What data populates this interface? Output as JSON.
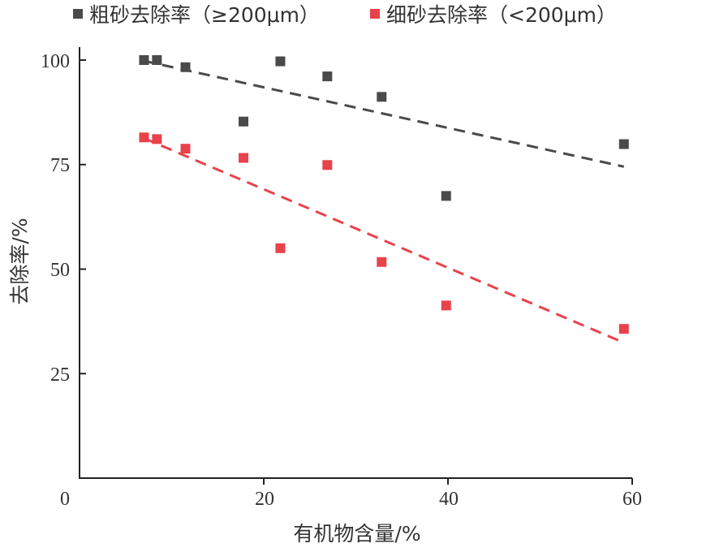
{
  "chart_data": {
    "type": "scatter",
    "title": "",
    "xlabel": "有机物含量/%",
    "ylabel": "去除率/%",
    "xlim": [
      0,
      60
    ],
    "ylim": [
      0,
      100
    ],
    "xticks": [
      0,
      20,
      40,
      60
    ],
    "yticks": [
      25,
      50,
      75,
      100
    ],
    "xtick_labels": [
      "0",
      "20",
      "40",
      "60"
    ],
    "ytick_labels": [
      "25",
      "50",
      "75",
      "100"
    ],
    "grid": false,
    "legend_position": "top",
    "series": [
      {
        "name": "粗砂去除率（≥200μm）",
        "color": "#4a4a4a",
        "x": [
          7.0,
          8.4,
          11.5,
          17.8,
          21.8,
          26.9,
          32.8,
          39.8,
          59.1
        ],
        "y": [
          100,
          100,
          98.3,
          85.3,
          99.7,
          96.1,
          91.2,
          67.5,
          79.9
        ],
        "trendline": {
          "x": [
            7.0,
            59.1
          ],
          "y": [
            99.8,
            74.5
          ]
        }
      },
      {
        "name": "细砂去除率（<200μm）",
        "color": "#e8424a",
        "x": [
          7.0,
          8.4,
          11.5,
          17.8,
          21.8,
          26.9,
          32.8,
          39.8,
          59.1
        ],
        "y": [
          81.5,
          81.1,
          78.8,
          76.6,
          55.0,
          74.9,
          51.7,
          41.3,
          35.7
        ],
        "trendline": {
          "x": [
            7.0,
            59.1
          ],
          "y": [
            81.3,
            32.4
          ]
        }
      }
    ]
  }
}
